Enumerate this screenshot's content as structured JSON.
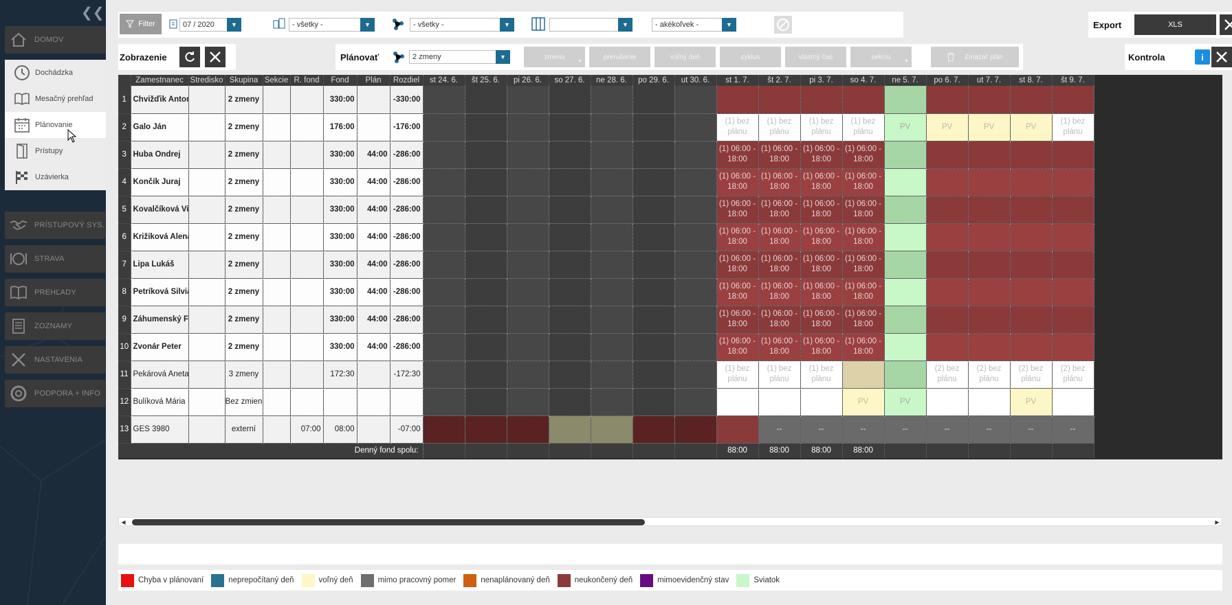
{
  "sidebar": {
    "items": [
      {
        "label": "DOMOV",
        "icon": "home-icon"
      },
      {
        "label": "DOCHÁDZKA",
        "icon": "clock-icon"
      },
      {
        "label": "PRÍSTUPOVÝ SYS.",
        "icon": "handshake-icon"
      },
      {
        "label": "STRAVA",
        "icon": "plate-icon"
      },
      {
        "label": "PREHĽADY",
        "icon": "book-icon"
      },
      {
        "label": "ZOZNAMY",
        "icon": "list-icon"
      },
      {
        "label": "NASTAVENIA",
        "icon": "wrench-icon"
      },
      {
        "label": "PODPORA + INFO",
        "icon": "lifebuoy-icon"
      }
    ],
    "submenu": [
      {
        "label": "Dochádzka",
        "icon": "clock-icon"
      },
      {
        "label": "Mesačný prehľad",
        "icon": "book-icon"
      },
      {
        "label": "Plánovanie",
        "icon": "calendar-icon"
      },
      {
        "label": "Prístupy",
        "icon": "door-icon"
      },
      {
        "label": "Uzávierka",
        "icon": "checkered-flag-icon"
      }
    ]
  },
  "filterbar": {
    "filter_label": "Filter",
    "month": "07 / 2020",
    "branch": "- všetky -",
    "group": "- všetky -",
    "columns": "",
    "any": "- akékoľvek -"
  },
  "export": {
    "label": "Export",
    "xls_label": "XLS"
  },
  "display": {
    "label": "Zobrazenie"
  },
  "plan": {
    "label": "Plánovať",
    "shift": "2 zmeny",
    "buttons": [
      "zmenu",
      "prerušenie",
      "voľný deň",
      "cyklus",
      "vlastný čas",
      "sekciu"
    ],
    "delete_label": "Zmazať plán"
  },
  "control": {
    "label": "Kontrola"
  },
  "table": {
    "headers": [
      "Zamestnanec",
      "Stredisko",
      "Skupina",
      "Sekcie",
      "R. fond",
      "Fond",
      "Plán",
      "Rozdiel"
    ],
    "days": [
      "st 24. 6.",
      "št 25. 6.",
      "pi 26. 6.",
      "so 27. 6.",
      "ne 28. 6.",
      "po 29. 6.",
      "ut 30. 6.",
      "st 1. 7.",
      "št 2. 7.",
      "pi 3. 7.",
      "so 4. 7.",
      "ne 5. 7.",
      "po 6. 7.",
      "ut 7. 7.",
      "st 8. 7.",
      "št 9. 7."
    ],
    "rows": [
      {
        "n": "1",
        "name": "Chvižďik Anton",
        "stredisko": "",
        "skupina": "2 zmeny",
        "sekcie": "",
        "rfond": "",
        "fond": "330:00",
        "plan": "",
        "rozdiel": "-330:00"
      },
      {
        "n": "2",
        "name": "Galo Ján",
        "stredisko": "",
        "skupina": "2 zmeny",
        "sekcie": "",
        "rfond": "",
        "fond": "176:00",
        "plan": "",
        "rozdiel": "-176:00"
      },
      {
        "n": "3",
        "name": "Huba Ondrej",
        "stredisko": "",
        "skupina": "2 zmeny",
        "sekcie": "",
        "rfond": "",
        "fond": "330:00",
        "plan": "44:00",
        "rozdiel": "-286:00"
      },
      {
        "n": "4",
        "name": "Končík Juraj",
        "stredisko": "",
        "skupina": "2 zmeny",
        "sekcie": "",
        "rfond": "",
        "fond": "330:00",
        "plan": "44:00",
        "rozdiel": "-286:00"
      },
      {
        "n": "5",
        "name": "Kovalčíková Viktória",
        "stredisko": "",
        "skupina": "2 zmeny",
        "sekcie": "",
        "rfond": "",
        "fond": "330:00",
        "plan": "44:00",
        "rozdiel": "-286:00"
      },
      {
        "n": "6",
        "name": "Križiková Alena",
        "stredisko": "",
        "skupina": "2 zmeny",
        "sekcie": "",
        "rfond": "",
        "fond": "330:00",
        "plan": "44:00",
        "rozdiel": "-286:00"
      },
      {
        "n": "7",
        "name": "Lipa Lukáš",
        "stredisko": "",
        "skupina": "2 zmeny",
        "sekcie": "",
        "rfond": "",
        "fond": "330:00",
        "plan": "44:00",
        "rozdiel": "-286:00"
      },
      {
        "n": "8",
        "name": "Petríková Silvia",
        "stredisko": "",
        "skupina": "2 zmeny",
        "sekcie": "",
        "rfond": "",
        "fond": "330:00",
        "plan": "44:00",
        "rozdiel": "-286:00"
      },
      {
        "n": "9",
        "name": "Záhumenský Filip",
        "stredisko": "",
        "skupina": "2 zmeny",
        "sekcie": "",
        "rfond": "",
        "fond": "330:00",
        "plan": "44:00",
        "rozdiel": "-286:00"
      },
      {
        "n": "10",
        "name": "Zvonár Peter",
        "stredisko": "",
        "skupina": "2 zmeny",
        "sekcie": "",
        "rfond": "",
        "fond": "330:00",
        "plan": "44:00",
        "rozdiel": "-286:00"
      },
      {
        "n": "11",
        "name": "Pekárová Aneta",
        "stredisko": "",
        "skupina": "3 zmeny",
        "sekcie": "",
        "rfond": "",
        "fond": "172:30",
        "plan": "",
        "rozdiel": "-172:30"
      },
      {
        "n": "12",
        "name": "Bulíková Mária",
        "stredisko": "",
        "skupina": "Bez zmien",
        "sekcie": "",
        "rfond": "",
        "fond": "",
        "plan": "",
        "rozdiel": ""
      },
      {
        "n": "13",
        "name": "GES 3980",
        "stredisko": "",
        "skupina": "externí",
        "sekcie": "",
        "rfond": "07:00",
        "fond": "08:00",
        "plan": "",
        "rozdiel": "-07:00"
      }
    ],
    "shift_text": "(1) 06:00 - 18:00",
    "no_plan_1": "(1) bez plánu",
    "no_plan_2": "(2) bez plánu",
    "pv": "PV",
    "dash": "--",
    "footer_label": "Denný fond spolu:",
    "footer_values": [
      "",
      "",
      "",
      "",
      "",
      "",
      "",
      "88:00",
      "88:00",
      "88:00",
      "88:00",
      "",
      "",
      "",
      "",
      ""
    ]
  },
  "legend": [
    {
      "label": "Chyba v plánovaní",
      "color": "#e81010"
    },
    {
      "label": "neprepočítaný deň",
      "color": "#2a7390"
    },
    {
      "label": "voľný deň",
      "color": "#fdf6c6"
    },
    {
      "label": "mimo pracovný pomer",
      "color": "#6e6e6e"
    },
    {
      "label": "nenaplánovaný deň",
      "color": "#cc6010"
    },
    {
      "label": "neukončený deň",
      "color": "#8b3a3a"
    },
    {
      "label": "mimoevidenčný stav",
      "color": "#6a0a80"
    },
    {
      "label": "Sviatok",
      "color": "#c8f7c8"
    }
  ]
}
